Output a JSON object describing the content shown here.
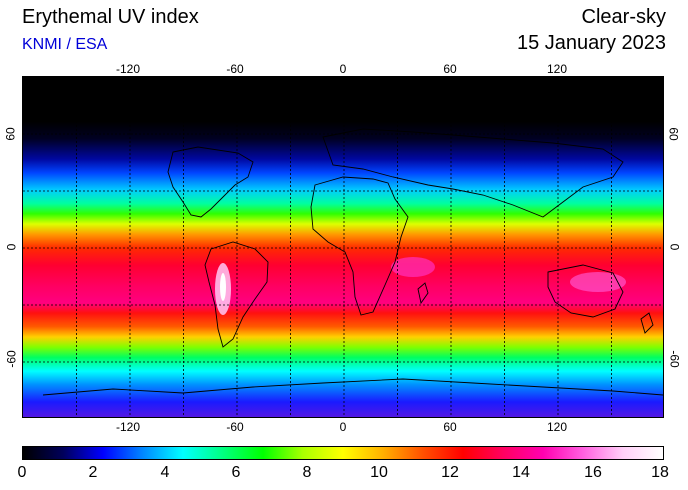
{
  "header": {
    "title": "Erythemal UV index",
    "source": "KNMI / ESA",
    "mode": "Clear-sky",
    "date": "15 January 2023"
  },
  "map": {
    "projection": "equirectangular",
    "lon_range": [
      -180,
      180
    ],
    "lat_range": [
      -90,
      90
    ],
    "lon_ticks": [
      -120,
      -60,
      0,
      60,
      120
    ],
    "lat_ticks": [
      60,
      0,
      -60
    ],
    "lon_tick_labels": [
      "-120",
      "-60",
      "0",
      "60",
      "120"
    ],
    "lat_tick_labels": [
      "60",
      "0",
      "-60"
    ],
    "grid": "dashed, every 30 degrees",
    "coastlines": "black outline"
  },
  "colorbar": {
    "min": 0,
    "max": 18,
    "tick_labels": [
      "0",
      "2",
      "4",
      "6",
      "8",
      "10",
      "12",
      "14",
      "16",
      "18"
    ],
    "colors": [
      "#000000",
      "#00005a",
      "#0000ff",
      "#0088ff",
      "#00ffff",
      "#00ff80",
      "#00ff00",
      "#aaff00",
      "#ffff00",
      "#ffb000",
      "#ff5000",
      "#ff0000",
      "#ff0060",
      "#ff00b0",
      "#ff60e0",
      "#ffd0f8",
      "#ffffff"
    ]
  }
}
